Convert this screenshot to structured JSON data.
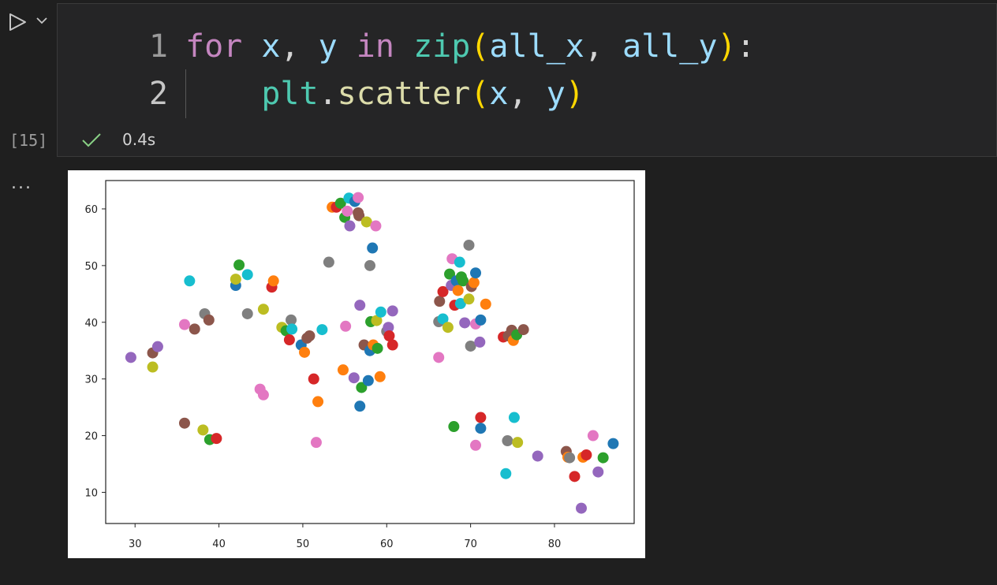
{
  "cell": {
    "execution_count": "[15]",
    "duration": "0.4s",
    "status_icon": "check-icon",
    "output_menu": "...",
    "code_lines": [
      {
        "number": "1",
        "tokens": [
          {
            "t": "for",
            "c": "kw"
          },
          {
            "t": " ",
            "c": "pun"
          },
          {
            "t": "x",
            "c": "var"
          },
          {
            "t": ", ",
            "c": "pun"
          },
          {
            "t": "y",
            "c": "var"
          },
          {
            "t": " ",
            "c": "pun"
          },
          {
            "t": "in",
            "c": "kw"
          },
          {
            "t": " ",
            "c": "pun"
          },
          {
            "t": "zip",
            "c": "fn"
          },
          {
            "t": "(",
            "c": "par"
          },
          {
            "t": "all_x",
            "c": "var"
          },
          {
            "t": ", ",
            "c": "pun"
          },
          {
            "t": "all_y",
            "c": "var"
          },
          {
            "t": ")",
            "c": "par"
          },
          {
            "t": ":",
            "c": "pun"
          }
        ]
      },
      {
        "number": "2",
        "tokens": [
          {
            "t": "    ",
            "c": "pun"
          },
          {
            "t": "plt",
            "c": "fn"
          },
          {
            "t": ".",
            "c": "pun"
          },
          {
            "t": "scatter",
            "c": "mth"
          },
          {
            "t": "(",
            "c": "par"
          },
          {
            "t": "x",
            "c": "var"
          },
          {
            "t": ", ",
            "c": "pun"
          },
          {
            "t": "y",
            "c": "var"
          },
          {
            "t": ")",
            "c": "par"
          }
        ]
      }
    ]
  },
  "colors": {
    "accent_check": "#89d185",
    "palette": [
      "#1f77b4",
      "#ff7f0e",
      "#2ca02c",
      "#d62728",
      "#9467bd",
      "#8c564b",
      "#e377c2",
      "#7f7f7f",
      "#bcbd22",
      "#17becf"
    ]
  },
  "chart_data": {
    "type": "scatter",
    "title": "",
    "xlabel": "",
    "ylabel": "",
    "xlim": [
      26.5,
      89.5
    ],
    "ylim": [
      4.5,
      65
    ],
    "xticks": [
      "30",
      "40",
      "50",
      "60",
      "70",
      "80"
    ],
    "yticks": [
      "10",
      "20",
      "30",
      "40",
      "50",
      "60"
    ],
    "grid": false,
    "points": [
      {
        "x": 29.5,
        "y": 33.8,
        "c": 4
      },
      {
        "x": 32.1,
        "y": 34.6,
        "c": 5
      },
      {
        "x": 32.1,
        "y": 32.1,
        "c": 8
      },
      {
        "x": 32.7,
        "y": 35.7,
        "c": 4
      },
      {
        "x": 35.9,
        "y": 39.6,
        "c": 6
      },
      {
        "x": 36.5,
        "y": 47.3,
        "c": 9
      },
      {
        "x": 37.1,
        "y": 38.8,
        "c": 5
      },
      {
        "x": 38.3,
        "y": 41.5,
        "c": 7
      },
      {
        "x": 38.8,
        "y": 40.4,
        "c": 5
      },
      {
        "x": 35.9,
        "y": 22.2,
        "c": 5
      },
      {
        "x": 38.1,
        "y": 21.0,
        "c": 8
      },
      {
        "x": 38.9,
        "y": 19.3,
        "c": 2
      },
      {
        "x": 39.7,
        "y": 19.5,
        "c": 3
      },
      {
        "x": 42.0,
        "y": 46.5,
        "c": 0
      },
      {
        "x": 42.0,
        "y": 47.6,
        "c": 8
      },
      {
        "x": 42.4,
        "y": 50.1,
        "c": 2
      },
      {
        "x": 43.4,
        "y": 48.4,
        "c": 9
      },
      {
        "x": 43.4,
        "y": 41.5,
        "c": 7
      },
      {
        "x": 44.9,
        "y": 28.2,
        "c": 6
      },
      {
        "x": 45.3,
        "y": 27.2,
        "c": 6
      },
      {
        "x": 45.3,
        "y": 42.3,
        "c": 8
      },
      {
        "x": 46.3,
        "y": 46.2,
        "c": 3
      },
      {
        "x": 46.5,
        "y": 47.3,
        "c": 1
      },
      {
        "x": 47.5,
        "y": 39.1,
        "c": 8
      },
      {
        "x": 48.0,
        "y": 38.5,
        "c": 2
      },
      {
        "x": 48.4,
        "y": 36.9,
        "c": 3
      },
      {
        "x": 48.6,
        "y": 40.4,
        "c": 7
      },
      {
        "x": 48.7,
        "y": 38.8,
        "c": 9
      },
      {
        "x": 49.8,
        "y": 36.0,
        "c": 0
      },
      {
        "x": 50.2,
        "y": 34.7,
        "c": 1
      },
      {
        "x": 50.5,
        "y": 37.2,
        "c": 5
      },
      {
        "x": 50.8,
        "y": 37.6,
        "c": 5
      },
      {
        "x": 51.3,
        "y": 30.0,
        "c": 3
      },
      {
        "x": 51.6,
        "y": 18.8,
        "c": 6
      },
      {
        "x": 51.8,
        "y": 26.0,
        "c": 1
      },
      {
        "x": 52.3,
        "y": 38.7,
        "c": 9
      },
      {
        "x": 53.1,
        "y": 50.6,
        "c": 7
      },
      {
        "x": 53.5,
        "y": 60.3,
        "c": 1
      },
      {
        "x": 54.0,
        "y": 60.3,
        "c": 3
      },
      {
        "x": 54.5,
        "y": 61.0,
        "c": 2
      },
      {
        "x": 54.8,
        "y": 31.6,
        "c": 1
      },
      {
        "x": 55.0,
        "y": 58.5,
        "c": 2
      },
      {
        "x": 55.1,
        "y": 39.3,
        "c": 6
      },
      {
        "x": 55.3,
        "y": 59.6,
        "c": 6
      },
      {
        "x": 55.5,
        "y": 61.9,
        "c": 9
      },
      {
        "x": 55.6,
        "y": 57.0,
        "c": 4
      },
      {
        "x": 56.1,
        "y": 30.2,
        "c": 4
      },
      {
        "x": 56.2,
        "y": 61.3,
        "c": 0
      },
      {
        "x": 56.6,
        "y": 62.0,
        "c": 6
      },
      {
        "x": 56.6,
        "y": 59.3,
        "c": 5
      },
      {
        "x": 56.7,
        "y": 58.8,
        "c": 5
      },
      {
        "x": 56.8,
        "y": 25.2,
        "c": 0
      },
      {
        "x": 56.8,
        "y": 43.0,
        "c": 4
      },
      {
        "x": 57.0,
        "y": 28.5,
        "c": 2
      },
      {
        "x": 57.3,
        "y": 36.0,
        "c": 5
      },
      {
        "x": 57.6,
        "y": 57.7,
        "c": 8
      },
      {
        "x": 57.8,
        "y": 29.7,
        "c": 0
      },
      {
        "x": 58.0,
        "y": 50.0,
        "c": 7
      },
      {
        "x": 58.0,
        "y": 35.0,
        "c": 0
      },
      {
        "x": 58.1,
        "y": 40.1,
        "c": 2
      },
      {
        "x": 58.3,
        "y": 53.1,
        "c": 0
      },
      {
        "x": 58.4,
        "y": 36.0,
        "c": 1
      },
      {
        "x": 58.7,
        "y": 57.0,
        "c": 6
      },
      {
        "x": 58.8,
        "y": 40.3,
        "c": 8
      },
      {
        "x": 58.9,
        "y": 35.4,
        "c": 2
      },
      {
        "x": 59.3,
        "y": 41.8,
        "c": 9
      },
      {
        "x": 59.2,
        "y": 30.4,
        "c": 1
      },
      {
        "x": 60.0,
        "y": 38.4,
        "c": 7
      },
      {
        "x": 60.2,
        "y": 39.1,
        "c": 4
      },
      {
        "x": 60.3,
        "y": 37.6,
        "c": 3
      },
      {
        "x": 60.7,
        "y": 36.0,
        "c": 3
      },
      {
        "x": 60.7,
        "y": 42.0,
        "c": 4
      },
      {
        "x": 66.2,
        "y": 40.1,
        "c": 7
      },
      {
        "x": 66.2,
        "y": 33.8,
        "c": 6
      },
      {
        "x": 66.3,
        "y": 43.7,
        "c": 5
      },
      {
        "x": 66.7,
        "y": 45.4,
        "c": 3
      },
      {
        "x": 66.7,
        "y": 40.6,
        "c": 9
      },
      {
        "x": 67.3,
        "y": 39.1,
        "c": 8
      },
      {
        "x": 67.5,
        "y": 48.5,
        "c": 2
      },
      {
        "x": 67.7,
        "y": 46.5,
        "c": 4
      },
      {
        "x": 67.8,
        "y": 51.2,
        "c": 6
      },
      {
        "x": 68.1,
        "y": 43.0,
        "c": 3
      },
      {
        "x": 68.3,
        "y": 47.3,
        "c": 0
      },
      {
        "x": 68.5,
        "y": 45.6,
        "c": 1
      },
      {
        "x": 68.7,
        "y": 50.6,
        "c": 9
      },
      {
        "x": 68.8,
        "y": 43.3,
        "c": 9
      },
      {
        "x": 68.9,
        "y": 48.0,
        "c": 2
      },
      {
        "x": 69.1,
        "y": 47.3,
        "c": 2
      },
      {
        "x": 69.3,
        "y": 39.9,
        "c": 4
      },
      {
        "x": 69.8,
        "y": 53.6,
        "c": 7
      },
      {
        "x": 69.8,
        "y": 44.1,
        "c": 8
      },
      {
        "x": 70.0,
        "y": 35.8,
        "c": 7
      },
      {
        "x": 70.1,
        "y": 46.3,
        "c": 5
      },
      {
        "x": 70.4,
        "y": 47.0,
        "c": 1
      },
      {
        "x": 70.6,
        "y": 48.7,
        "c": 0
      },
      {
        "x": 70.6,
        "y": 39.7,
        "c": 6
      },
      {
        "x": 71.1,
        "y": 36.5,
        "c": 4
      },
      {
        "x": 71.2,
        "y": 40.4,
        "c": 0
      },
      {
        "x": 71.8,
        "y": 43.2,
        "c": 1
      },
      {
        "x": 68.0,
        "y": 21.6,
        "c": 2
      },
      {
        "x": 71.2,
        "y": 23.2,
        "c": 3
      },
      {
        "x": 71.2,
        "y": 21.3,
        "c": 0
      },
      {
        "x": 70.6,
        "y": 18.3,
        "c": 6
      },
      {
        "x": 73.9,
        "y": 37.4,
        "c": 3
      },
      {
        "x": 74.5,
        "y": 37.6,
        "c": 5
      },
      {
        "x": 74.9,
        "y": 38.6,
        "c": 5
      },
      {
        "x": 75.1,
        "y": 36.8,
        "c": 1
      },
      {
        "x": 75.5,
        "y": 37.8,
        "c": 2
      },
      {
        "x": 76.3,
        "y": 38.7,
        "c": 5
      },
      {
        "x": 74.2,
        "y": 13.3,
        "c": 9
      },
      {
        "x": 74.4,
        "y": 19.1,
        "c": 7
      },
      {
        "x": 75.2,
        "y": 23.2,
        "c": 9
      },
      {
        "x": 75.6,
        "y": 18.8,
        "c": 8
      },
      {
        "x": 78.0,
        "y": 16.4,
        "c": 4
      },
      {
        "x": 81.4,
        "y": 17.2,
        "c": 5
      },
      {
        "x": 81.6,
        "y": 16.2,
        "c": 1
      },
      {
        "x": 81.8,
        "y": 16.1,
        "c": 7
      },
      {
        "x": 82.4,
        "y": 12.8,
        "c": 3
      },
      {
        "x": 83.2,
        "y": 7.2,
        "c": 4
      },
      {
        "x": 83.4,
        "y": 16.2,
        "c": 1
      },
      {
        "x": 83.8,
        "y": 16.6,
        "c": 3
      },
      {
        "x": 84.6,
        "y": 20.0,
        "c": 6
      },
      {
        "x": 85.2,
        "y": 13.6,
        "c": 4
      },
      {
        "x": 85.8,
        "y": 16.1,
        "c": 2
      },
      {
        "x": 87.0,
        "y": 18.6,
        "c": 0
      }
    ]
  }
}
